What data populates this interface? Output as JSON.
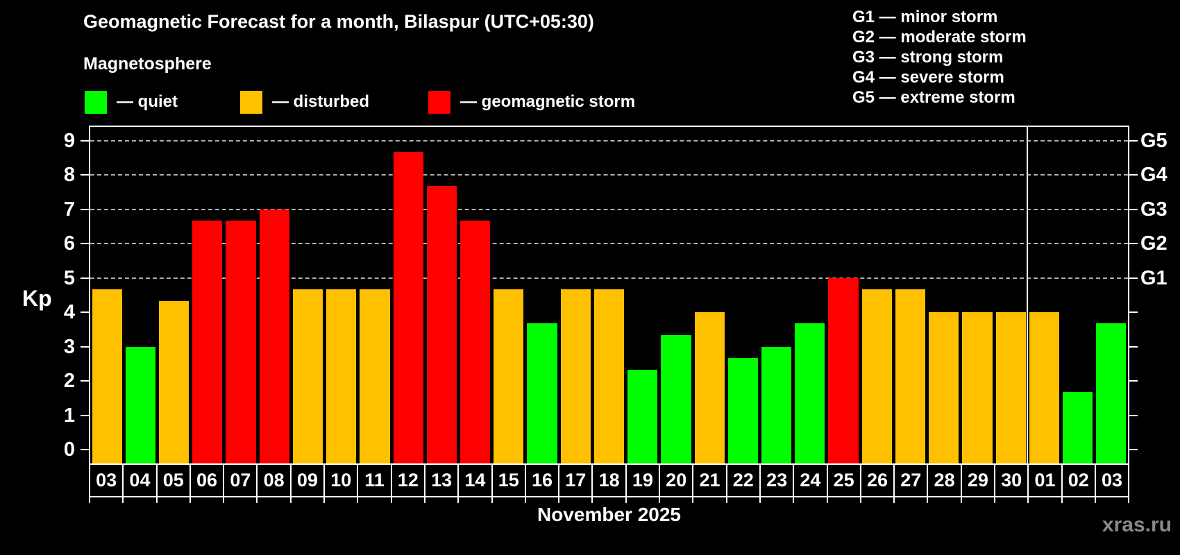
{
  "title": "Geomagnetic Forecast for a month, Bilaspur (UTC+05:30)",
  "subtitle": "Magnetosphere",
  "legend": {
    "items": [
      {
        "key": "quiet",
        "label": "— quiet",
        "color": "#00ff00"
      },
      {
        "key": "disturbed",
        "label": "— disturbed",
        "color": "#ffc000"
      },
      {
        "key": "storm",
        "label": "— geomagnetic storm",
        "color": "#ff0000"
      }
    ]
  },
  "g_legend": [
    "G1 — minor storm",
    "G2 — moderate storm",
    "G3 — strong storm",
    "G4 — severe storm",
    "G5 — extreme storm"
  ],
  "chart_data": {
    "type": "bar",
    "title": "Geomagnetic Forecast for a month, Bilaspur (UTC+05:30)",
    "xlabel": "November 2025",
    "ylabel": "Kp",
    "ylim": [
      0,
      9
    ],
    "grid": "dashed horizontal at Kp 5-9",
    "legend_position": "top",
    "categories": [
      "03",
      "04",
      "05",
      "06",
      "07",
      "08",
      "09",
      "10",
      "11",
      "12",
      "13",
      "14",
      "15",
      "16",
      "17",
      "18",
      "19",
      "20",
      "21",
      "22",
      "23",
      "24",
      "25",
      "26",
      "27",
      "28",
      "29",
      "30",
      "01",
      "02",
      "03"
    ],
    "values": [
      4.67,
      3,
      4.33,
      6.67,
      6.67,
      7,
      4.67,
      4.67,
      4.67,
      8.67,
      7.67,
      6.67,
      4.67,
      3.67,
      4.67,
      4.67,
      2.33,
      3.33,
      4,
      2.67,
      3,
      3.67,
      5,
      4.67,
      4.67,
      4,
      4,
      4,
      4,
      1.67,
      3.67
    ],
    "status": [
      "disturbed",
      "quiet",
      "disturbed",
      "storm",
      "storm",
      "storm",
      "disturbed",
      "disturbed",
      "disturbed",
      "storm",
      "storm",
      "storm",
      "disturbed",
      "quiet",
      "disturbed",
      "disturbed",
      "quiet",
      "quiet",
      "disturbed",
      "quiet",
      "quiet",
      "quiet",
      "storm",
      "disturbed",
      "disturbed",
      "disturbed",
      "disturbed",
      "disturbed",
      "disturbed",
      "quiet",
      "quiet"
    ],
    "colors": {
      "quiet": "#00ff00",
      "disturbed": "#ffc000",
      "storm": "#ff0000"
    },
    "yticks": [
      0,
      1,
      2,
      3,
      4,
      5,
      6,
      7,
      8,
      9
    ],
    "gridlines_at": [
      5,
      6,
      7,
      8,
      9
    ],
    "right_axis": {
      "labels": [
        "G1",
        "G2",
        "G3",
        "G4",
        "G5"
      ],
      "at": [
        5,
        6,
        7,
        8,
        9
      ]
    },
    "month_separator_before_index": 28
  },
  "footer": {
    "month_label": "November 2025",
    "watermark": "xras.ru"
  }
}
